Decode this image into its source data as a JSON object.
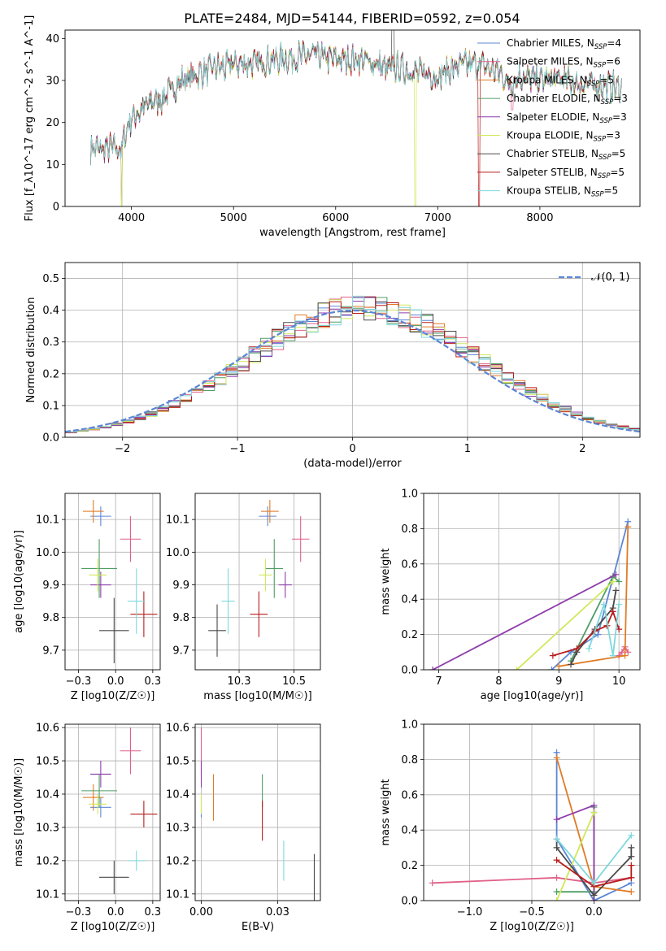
{
  "figure": {
    "title": "PLATE=2484, MJD=54144, FIBERID=0592, z=0.054"
  },
  "models": [
    {
      "name": "Chabrier MILES",
      "nssp": "4",
      "color": "#5b86d6"
    },
    {
      "name": "Salpeter MILES",
      "nssp": "6",
      "color": "#e06088"
    },
    {
      "name": "Kroupa MILES",
      "nssp": "5",
      "color": "#e07b25"
    },
    {
      "name": "Chabrier ELODIE",
      "nssp": "3",
      "color": "#4f9e66"
    },
    {
      "name": "Salpeter ELODIE",
      "nssp": "3",
      "color": "#8e3dab"
    },
    {
      "name": "Kroupa ELODIE",
      "nssp": "3",
      "color": "#d0e85a"
    },
    {
      "name": "Chabrier STELIB",
      "nssp": "5",
      "color": "#4a4a4a"
    },
    {
      "name": "Salpeter STELIB",
      "nssp": "5",
      "color": "#b81c1c"
    },
    {
      "name": "Kroupa STELIB",
      "nssp": "5",
      "color": "#7fd8dc"
    }
  ],
  "chart_data": [
    {
      "type": "line",
      "id": "spectrum",
      "xlabel": "wavelength [Angstrom, rest frame]",
      "ylabel": "Flux [f_λ10^-17 erg cm^-2 s^-1 A^-1]",
      "xlim": [
        3350,
        8980
      ],
      "ylim": [
        0,
        42
      ],
      "xticks": [
        4000,
        5000,
        6000,
        7000,
        8000
      ],
      "yticks": [
        0,
        10,
        20,
        30,
        40
      ],
      "legend": "top-right",
      "continuum": [
        [
          3600,
          14
        ],
        [
          3700,
          13.5
        ],
        [
          3800,
          14
        ],
        [
          3900,
          13.5
        ],
        [
          3950,
          18
        ],
        [
          4000,
          21
        ],
        [
          4100,
          23
        ],
        [
          4200,
          25
        ],
        [
          4300,
          25.5
        ],
        [
          4400,
          28
        ],
        [
          4500,
          30
        ],
        [
          4600,
          31
        ],
        [
          4700,
          32
        ],
        [
          4800,
          33
        ],
        [
          4900,
          33
        ],
        [
          5000,
          34
        ],
        [
          5200,
          34
        ],
        [
          5400,
          35
        ],
        [
          5600,
          35.5
        ],
        [
          5800,
          36
        ],
        [
          6000,
          35
        ],
        [
          6200,
          35
        ],
        [
          6400,
          34
        ],
        [
          6500,
          32.5
        ],
        [
          6600,
          33
        ],
        [
          6800,
          32
        ],
        [
          7000,
          31
        ],
        [
          7200,
          33.5
        ],
        [
          7400,
          34
        ],
        [
          7600,
          32
        ],
        [
          7700,
          29
        ],
        [
          7800,
          31
        ],
        [
          8000,
          30
        ],
        [
          8200,
          30.5
        ],
        [
          8400,
          29
        ],
        [
          8600,
          29
        ],
        [
          8800,
          28
        ]
      ]
    },
    {
      "type": "line",
      "id": "residuals",
      "xlabel": "(data-model)/error",
      "ylabel": "Normed distribution",
      "xlim": [
        -2.5,
        2.5
      ],
      "ylim": [
        0,
        0.55
      ],
      "xticks": [
        -2,
        -1,
        0,
        1,
        2
      ],
      "yticks": [
        0.0,
        0.1,
        0.2,
        0.3,
        0.4,
        0.5
      ],
      "legend": "top-right",
      "reference_label": "𝒩(0, 1)",
      "bin_width": 0.1
    },
    {
      "type": "scatter",
      "id": "age-z",
      "xlabel": "Z [log10(Z/Z☉)]",
      "ylabel": "age  [log10(age/yr)]",
      "xlim": [
        -0.34,
        0.3
      ],
      "ylim": [
        9.64,
        10.18
      ],
      "xticks": [
        -0.25,
        0.0,
        0.25
      ],
      "yticks": [
        9.7,
        9.8,
        9.9,
        10.0,
        10.1
      ],
      "points": [
        {
          "x": -0.1,
          "xerr": 0.07,
          "y": 10.11,
          "yerr": 0.03
        },
        {
          "x": 0.1,
          "xerr": 0.07,
          "y": 10.04,
          "yerr": 0.07
        },
        {
          "x": -0.15,
          "xerr": 0.07,
          "y": 10.125,
          "yerr": 0.035
        },
        {
          "x": -0.11,
          "xerr": 0.12,
          "y": 9.95,
          "yerr": 0.09
        },
        {
          "x": -0.1,
          "xerr": 0.07,
          "y": 9.9,
          "yerr": 0.04
        },
        {
          "x": -0.12,
          "xerr": 0.06,
          "y": 9.93,
          "yerr": 0.05
        },
        {
          "x": -0.01,
          "xerr": 0.1,
          "y": 9.76,
          "yerr": 0.1
        },
        {
          "x": 0.19,
          "xerr": 0.09,
          "y": 9.81,
          "yerr": 0.07
        },
        {
          "x": 0.14,
          "xerr": 0.06,
          "y": 9.85,
          "yerr": 0.1
        }
      ]
    },
    {
      "type": "scatter",
      "id": "age-mass",
      "xlabel": "mass [log10(M/M☉)]",
      "ylabel": "",
      "xlim": [
        10.05,
        10.62
      ],
      "ylim": [
        9.64,
        10.18
      ],
      "xticks": [
        10.25,
        10.5
      ],
      "yticks": [
        9.7,
        9.8,
        9.9,
        10.0,
        10.1
      ],
      "points": [
        {
          "x": 10.38,
          "xerr": 0.04,
          "y": 10.11,
          "yerr": 0.03
        },
        {
          "x": 10.53,
          "xerr": 0.04,
          "y": 10.04,
          "yerr": 0.07
        },
        {
          "x": 10.39,
          "xerr": 0.04,
          "y": 10.125,
          "yerr": 0.035
        },
        {
          "x": 10.41,
          "xerr": 0.04,
          "y": 9.95,
          "yerr": 0.09
        },
        {
          "x": 10.46,
          "xerr": 0.03,
          "y": 9.9,
          "yerr": 0.04
        },
        {
          "x": 10.37,
          "xerr": 0.03,
          "y": 9.93,
          "yerr": 0.05
        },
        {
          "x": 10.15,
          "xerr": 0.04,
          "y": 9.76,
          "yerr": 0.08
        },
        {
          "x": 10.34,
          "xerr": 0.04,
          "y": 9.81,
          "yerr": 0.07
        },
        {
          "x": 10.2,
          "xerr": 0.03,
          "y": 9.85,
          "yerr": 0.1
        }
      ]
    },
    {
      "type": "line",
      "id": "weight-age",
      "xlabel": "age  [log10(age/yr)]",
      "ylabel": "mass weight",
      "xlim": [
        6.75,
        10.35
      ],
      "ylim": [
        0,
        1
      ],
      "xticks": [
        7,
        8,
        9,
        10
      ],
      "yticks": [
        0.0,
        0.2,
        0.4,
        0.6,
        0.8,
        1.0
      ],
      "series": [
        [
          [
            8.88,
            0.0
          ],
          [
            9.2,
            0.1
          ],
          [
            9.65,
            0.2
          ],
          [
            10.15,
            0.84
          ]
        ],
        [
          [
            10.0,
            0.08
          ],
          [
            10.05,
            0.1
          ],
          [
            10.1,
            0.13
          ],
          [
            10.15,
            0.1
          ]
        ],
        [
          [
            9.0,
            0.02
          ],
          [
            10.1,
            0.08
          ],
          [
            10.15,
            0.81
          ]
        ],
        [
          [
            9.2,
            0.05
          ],
          [
            9.9,
            0.53
          ],
          [
            10.0,
            0.5
          ]
        ],
        [
          [
            6.9,
            0.0
          ],
          [
            9.95,
            0.54
          ]
        ],
        [
          [
            8.3,
            0.0
          ],
          [
            9.9,
            0.5
          ]
        ],
        [
          [
            9.2,
            0.03
          ],
          [
            9.3,
            0.1
          ],
          [
            9.6,
            0.23
          ],
          [
            9.9,
            0.35
          ],
          [
            9.95,
            0.45
          ]
        ],
        [
          [
            8.9,
            0.08
          ],
          [
            9.3,
            0.12
          ],
          [
            9.6,
            0.22
          ],
          [
            9.8,
            0.25
          ],
          [
            9.9,
            0.33
          ],
          [
            10.0,
            0.23
          ]
        ],
        [
          [
            9.5,
            0.12
          ],
          [
            9.75,
            0.37
          ],
          [
            9.9,
            0.08
          ],
          [
            10.0,
            0.37
          ]
        ]
      ]
    },
    {
      "type": "scatter",
      "id": "mass-z",
      "xlabel": "Z [log10(Z/Z☉)]",
      "ylabel": "mass [log10(M/M☉)]",
      "xlim": [
        -0.34,
        0.3
      ],
      "ylim": [
        10.08,
        10.61
      ],
      "xticks": [
        -0.25,
        0.0,
        0.25
      ],
      "yticks": [
        10.1,
        10.2,
        10.3,
        10.4,
        10.5,
        10.6
      ],
      "points": [
        {
          "x": -0.1,
          "xerr": 0.07,
          "y": 10.36,
          "yerr": 0.03
        },
        {
          "x": 0.1,
          "xerr": 0.07,
          "y": 10.53,
          "yerr": 0.07
        },
        {
          "x": -0.15,
          "xerr": 0.07,
          "y": 10.39,
          "yerr": 0.04
        },
        {
          "x": -0.11,
          "xerr": 0.12,
          "y": 10.41,
          "yerr": 0.05
        },
        {
          "x": -0.1,
          "xerr": 0.07,
          "y": 10.46,
          "yerr": 0.04
        },
        {
          "x": -0.12,
          "xerr": 0.06,
          "y": 10.37,
          "yerr": 0.03
        },
        {
          "x": -0.01,
          "xerr": 0.1,
          "y": 10.15,
          "yerr": 0.05
        },
        {
          "x": 0.19,
          "xerr": 0.09,
          "y": 10.34,
          "yerr": 0.04
        },
        {
          "x": 0.14,
          "xerr": 0.06,
          "y": 10.2,
          "yerr": 0.03
        }
      ]
    },
    {
      "type": "scatter",
      "id": "mass-ebv",
      "xlabel": "E(B-V)",
      "ylabel": "",
      "xlim": [
        -0.002,
        0.039
      ],
      "ylim": [
        10.08,
        10.61
      ],
      "xticks": [
        0.0,
        0.025
      ],
      "yticks": [
        10.1,
        10.2,
        10.3,
        10.4,
        10.5,
        10.6
      ],
      "points": [
        {
          "x": 0.0,
          "y": 10.36,
          "yerr": 0.03
        },
        {
          "x": 0.0,
          "y": 10.53,
          "yerr": 0.07
        },
        {
          "x": 0.004,
          "y": 10.39,
          "yerr": 0.07
        },
        {
          "x": 0.02,
          "y": 10.41,
          "yerr": 0.05
        },
        {
          "x": 0.0,
          "y": 10.46,
          "yerr": 0.04
        },
        {
          "x": 0.0,
          "y": 10.37,
          "yerr": 0.03
        },
        {
          "x": 0.037,
          "y": 10.15,
          "yerr": 0.07
        },
        {
          "x": 0.02,
          "y": 10.32,
          "yerr": 0.06
        },
        {
          "x": 0.027,
          "y": 10.2,
          "yerr": 0.06
        }
      ]
    },
    {
      "type": "line",
      "id": "weight-z",
      "xlabel": "Z [log10(Z/Z☉)]",
      "ylabel": "mass weight",
      "xlim": [
        -1.37,
        0.37
      ],
      "ylim": [
        0,
        1
      ],
      "xticks": [
        -1.0,
        -0.5,
        0.0
      ],
      "yticks": [
        0.0,
        0.2,
        0.4,
        0.6,
        0.8,
        1.0
      ],
      "series": [
        [
          [
            -0.3,
            0.84
          ],
          [
            -0.3,
            0.35
          ],
          [
            0.0,
            0.0
          ],
          [
            0.3,
            0.1
          ]
        ],
        [
          [
            -1.3,
            0.1
          ],
          [
            -0.3,
            0.13
          ],
          [
            0.0,
            0.1
          ],
          [
            0.3,
            0.13
          ]
        ],
        [
          [
            -0.3,
            0.81
          ],
          [
            0.0,
            0.08
          ],
          [
            0.3,
            0.05
          ]
        ],
        [
          [
            -0.3,
            0.05
          ],
          [
            0.0,
            0.05
          ],
          [
            0.0,
            0.53
          ],
          [
            0.0,
            0.5
          ]
        ],
        [
          [
            -0.3,
            0.46
          ],
          [
            0.0,
            0.54
          ],
          [
            0.0,
            0.0
          ]
        ],
        [
          [
            -0.3,
            0.0
          ],
          [
            0.0,
            0.5
          ]
        ],
        [
          [
            -0.3,
            0.35
          ],
          [
            -0.3,
            0.3
          ],
          [
            0.0,
            0.03
          ],
          [
            0.3,
            0.25
          ],
          [
            0.3,
            0.3
          ]
        ],
        [
          [
            -0.3,
            0.23
          ],
          [
            0.0,
            0.08
          ],
          [
            0.3,
            0.13
          ],
          [
            0.3,
            0.2
          ]
        ],
        [
          [
            -0.3,
            0.35
          ],
          [
            0.0,
            0.1
          ],
          [
            0.3,
            0.37
          ]
        ]
      ]
    }
  ]
}
